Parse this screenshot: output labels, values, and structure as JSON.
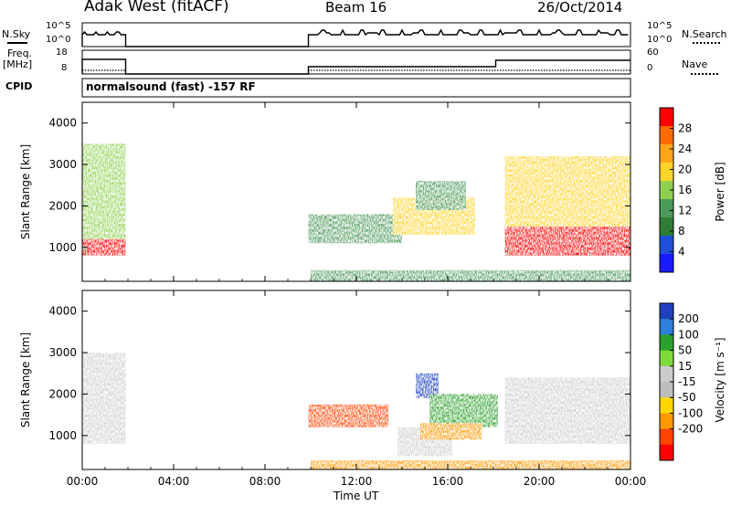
{
  "header": {
    "station": "Adak West (fitACF)",
    "beam": "Beam 16",
    "date": "26/Oct/2014",
    "cpid_label": "CPID",
    "cpid_value": "normalsound (fast) -157 RF"
  },
  "aux_panels": {
    "nsky": {
      "left_label": "N.Sky",
      "right_label": "N.Search",
      "left_ticks": [
        "10^5",
        "10^0"
      ],
      "right_ticks": [
        "10^5",
        "10^0"
      ]
    },
    "freq": {
      "left_label": "Freq.",
      "left_units": "[MHz]",
      "left_ticks": [
        "18",
        "8"
      ],
      "right_label": "Nave",
      "right_ticks": [
        "60",
        "0"
      ]
    }
  },
  "colors": {
    "power_scale": [
      "#1a1aff",
      "#1f4fd8",
      "#2e7d32",
      "#4c9a5a",
      "#8fd14f",
      "#ffd42a",
      "#ffa51a",
      "#ff6a00",
      "#ff0000"
    ],
    "velocity_scale": [
      "#2040c0",
      "#2d7fd9",
      "#2ca02c",
      "#7fdb3a",
      "#cccccc",
      "#bdbdbd",
      "#ffd700",
      "#ff9900",
      "#ff4500",
      "#ff0000"
    ]
  },
  "chart_data": [
    {
      "type": "heatmap",
      "name": "Power",
      "ylabel": "Slant Range [km]",
      "colorbar_label": "Power [dB]",
      "colorbar_ticks": [
        "28",
        "24",
        "20",
        "16",
        "12",
        "8",
        "4"
      ],
      "x_ticks": [
        "00:00",
        "04:00",
        "08:00",
        "12:00",
        "16:00",
        "20:00",
        "00:00"
      ],
      "y_ticks": [
        "1000",
        "2000",
        "3000",
        "4000"
      ],
      "xlim": [
        0,
        24
      ],
      "ylim": [
        180,
        4500
      ],
      "x_unit": "hours UT",
      "echo_regions": [
        {
          "t": [
            0.0,
            1.9
          ],
          "range": [
            800,
            1200
          ],
          "power": 28
        },
        {
          "t": [
            0.0,
            1.9
          ],
          "range": [
            1200,
            3500
          ],
          "power": 14
        },
        {
          "t": [
            9.9,
            14.0
          ],
          "range": [
            1100,
            1800
          ],
          "power": 12
        },
        {
          "t": [
            13.6,
            17.2
          ],
          "range": [
            1300,
            2200
          ],
          "power": 18
        },
        {
          "t": [
            14.6,
            16.8
          ],
          "range": [
            1900,
            2600
          ],
          "power": 12
        },
        {
          "t": [
            18.5,
            24.0
          ],
          "range": [
            800,
            1500
          ],
          "power": 28
        },
        {
          "t": [
            18.5,
            24.0
          ],
          "range": [
            1500,
            3200
          ],
          "power": 18
        },
        {
          "t": [
            10.0,
            24.0
          ],
          "range": [
            180,
            450
          ],
          "power": 10
        }
      ]
    },
    {
      "type": "heatmap",
      "name": "Velocity",
      "ylabel": "Slant Range [km]",
      "colorbar_label": "Velocity [m s⁻¹]",
      "colorbar_ticks": [
        "200",
        "100",
        "50",
        "15",
        "-15",
        "-50",
        "-100",
        "-200"
      ],
      "x_ticks": [
        "00:00",
        "04:00",
        "08:00",
        "12:00",
        "16:00",
        "20:00",
        "00:00"
      ],
      "y_ticks": [
        "1000",
        "2000",
        "3000",
        "4000"
      ],
      "xlabel": "Time UT",
      "xlim": [
        0,
        24
      ],
      "ylim": [
        180,
        4500
      ],
      "echo_regions": [
        {
          "t": [
            0.0,
            1.9
          ],
          "range": [
            800,
            1400
          ],
          "velocity": 0
        },
        {
          "t": [
            0.0,
            1.9
          ],
          "range": [
            1400,
            3000
          ],
          "velocity": 0
        },
        {
          "t": [
            9.9,
            13.4
          ],
          "range": [
            1200,
            1750
          ],
          "velocity": -120
        },
        {
          "t": [
            14.6,
            15.6
          ],
          "range": [
            1900,
            2500
          ],
          "velocity": 200
        },
        {
          "t": [
            15.2,
            18.2
          ],
          "range": [
            1200,
            2000
          ],
          "velocity": 60
        },
        {
          "t": [
            13.8,
            16.2
          ],
          "range": [
            500,
            1200
          ],
          "velocity": 0
        },
        {
          "t": [
            14.8,
            17.5
          ],
          "range": [
            900,
            1300
          ],
          "velocity": -60
        },
        {
          "t": [
            18.5,
            24.0
          ],
          "range": [
            800,
            2400
          ],
          "velocity": 0
        },
        {
          "t": [
            10.0,
            24.0
          ],
          "range": [
            180,
            400
          ],
          "velocity": -60
        }
      ]
    }
  ]
}
